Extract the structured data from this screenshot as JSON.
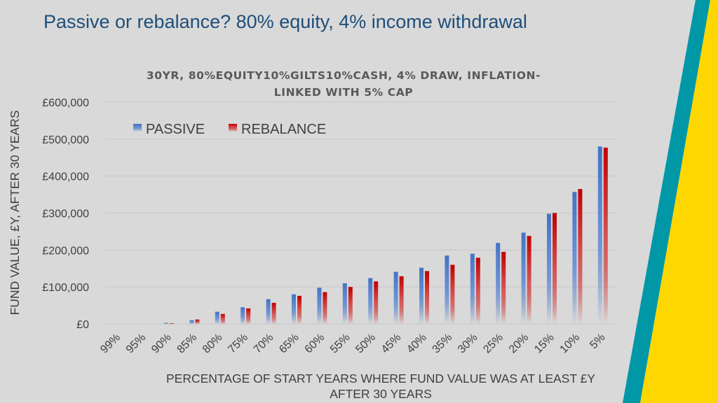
{
  "slide": {
    "title": "Passive or rebalance? 80% equity, 4% income withdrawal"
  },
  "colors": {
    "passive": "#4472c4",
    "rebalance": "#c00000",
    "accent_teal": "#0097a7",
    "accent_yellow": "#ffd700"
  },
  "chart_data": {
    "type": "bar",
    "title_line1": "30YR, 80%EQUITY10%GILTS10%CASH, 4% DRAW, INFLATION-",
    "title_line2": "LINKED WITH 5% CAP",
    "ylabel": "FUND VALUE, £Y, AFTER 30 YEARS",
    "xlabel_line1": "PERCENTAGE OF START YEARS WHERE FUND VALUE WAS AT LEAST £Y",
    "xlabel_line2": "AFTER 30 YEARS",
    "ylim": [
      0,
      600000
    ],
    "yticks": [
      0,
      100000,
      200000,
      300000,
      400000,
      500000,
      600000
    ],
    "ytick_labels": [
      "£0",
      "£100,000",
      "£200,000",
      "£300,000",
      "£400,000",
      "£500,000",
      "£600,000"
    ],
    "grid": true,
    "legend_position": "top-left",
    "categories": [
      "99%",
      "95%",
      "90%",
      "85%",
      "80%",
      "75%",
      "70%",
      "65%",
      "60%",
      "55%",
      "50%",
      "45%",
      "40%",
      "35%",
      "30%",
      "25%",
      "20%",
      "15%",
      "10%",
      "5%"
    ],
    "series": [
      {
        "name": "PASSIVE",
        "values": [
          0,
          0,
          3000,
          10000,
          33000,
          45000,
          67000,
          80000,
          98000,
          110000,
          124000,
          141000,
          152000,
          185000,
          190000,
          219000,
          247000,
          298000,
          357000,
          480000
        ]
      },
      {
        "name": "REBALANCE",
        "values": [
          0,
          0,
          2000,
          12000,
          27000,
          42000,
          57000,
          76000,
          86000,
          100000,
          115000,
          129000,
          143000,
          160000,
          179000,
          195000,
          238000,
          300000,
          365000,
          477000
        ]
      }
    ]
  }
}
